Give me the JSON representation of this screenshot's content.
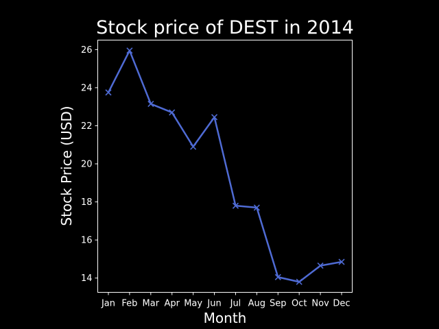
{
  "chart_data": {
    "type": "line",
    "title": "Stock price of DEST in 2014",
    "xlabel": "Month",
    "ylabel": "Stock Price (USD)",
    "categories": [
      "Jan",
      "Feb",
      "Mar",
      "Apr",
      "May",
      "Jun",
      "Jul",
      "Aug",
      "Sep",
      "Oct",
      "Nov",
      "Dec"
    ],
    "series": [
      {
        "values": [
          23.75,
          25.95,
          23.15,
          22.7,
          20.9,
          22.45,
          17.8,
          17.7,
          14.05,
          13.8,
          14.65,
          14.85
        ],
        "color": "#4f6bd4",
        "marker": "x"
      }
    ],
    "yticks": [
      14,
      16,
      18,
      20,
      22,
      24,
      26
    ],
    "ylim": [
      13.25,
      26.5
    ],
    "grid": false,
    "colors": {
      "background": "#000000",
      "foreground": "#ffffff",
      "line": "#4f6bd4"
    }
  }
}
